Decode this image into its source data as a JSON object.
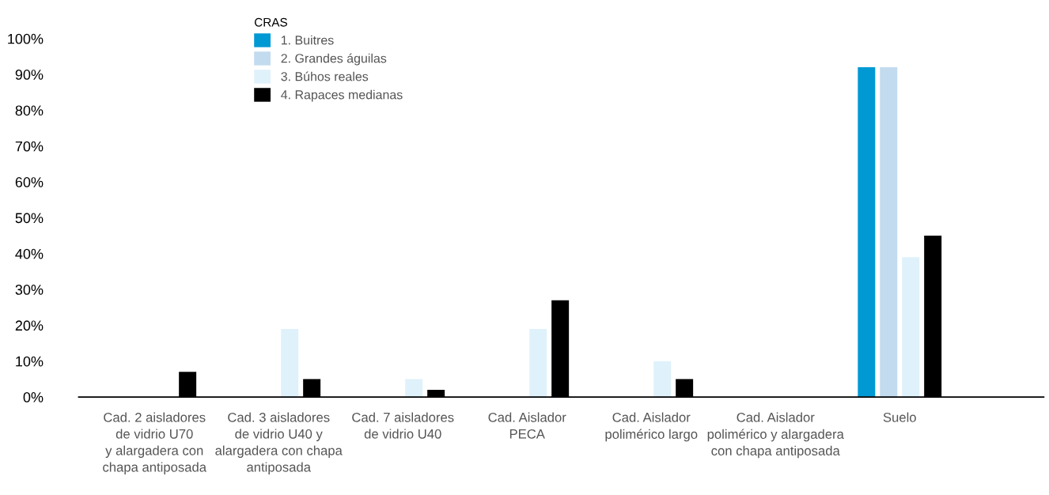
{
  "chart_data": {
    "type": "bar",
    "legend_title": "CRAS",
    "legend": "top left",
    "grid": false,
    "categories": [
      "Cad. 2 aisladores\nde vidrio U70\ny alargadera con\nchapa antiposada",
      "Cad. 3 aisladores\nde vidrio U40 y\nalargadera con chapa\nantiposada",
      "Cad. 7 aisladores\nde vidrio U40",
      "Cad. Aislador\nPECA",
      "Cad. Aislador\npolimérico largo",
      "Cad. Aislador\npolimérico y alargadera\ncon chapa antiposada",
      "Suelo"
    ],
    "series": [
      {
        "name": "1. Buitres",
        "color": "#0099d4",
        "values": [
          0,
          0,
          0,
          0,
          0,
          0,
          92
        ]
      },
      {
        "name": "2. Grandes águilas",
        "color": "#c2dbef",
        "values": [
          0,
          0,
          0,
          0,
          0,
          0,
          92
        ]
      },
      {
        "name": "3. Búhos reales",
        "color": "#dff1fb",
        "values": [
          0,
          19,
          5,
          19,
          10,
          0,
          39
        ]
      },
      {
        "name": "4. Rapaces medianas",
        "color": "#000000",
        "values": [
          7,
          5,
          2,
          27,
          5,
          0,
          45
        ]
      }
    ],
    "ylim": [
      0,
      100
    ],
    "yticks": [
      {
        "value": 0,
        "label": "0%"
      },
      {
        "value": 10,
        "label": "10%"
      },
      {
        "value": 20,
        "label": "20%"
      },
      {
        "value": 30,
        "label": "30%"
      },
      {
        "value": 40,
        "label": "40%"
      },
      {
        "value": 50,
        "label": "50%"
      },
      {
        "value": 60,
        "label": "60%"
      },
      {
        "value": 70,
        "label": "70%"
      },
      {
        "value": 80,
        "label": "80%"
      },
      {
        "value": 90,
        "label": "90%"
      },
      {
        "value": 100,
        "label": "100%"
      }
    ]
  }
}
